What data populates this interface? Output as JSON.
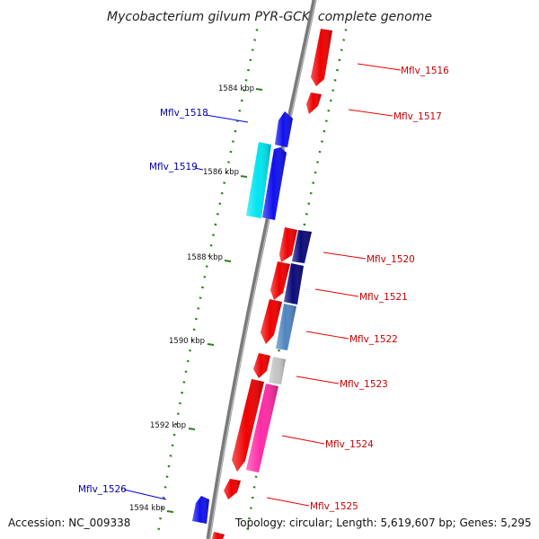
{
  "title": "Mycobacterium gilvum PYR-GCK, complete genome",
  "footer": {
    "accession": "Accession: NC_009338",
    "summary": "Topology: circular; Length: 5,619,607 bp; Genes: 5,295"
  },
  "scale_labels": [
    "1584 kbp",
    "1586 kbp",
    "1588 kbp",
    "1590 kbp",
    "1592 kbp",
    "1594 kbp"
  ],
  "gene_labels": {
    "forward": [
      "Mflv_1516",
      "Mflv_1517",
      "Mflv_1520",
      "Mflv_1521",
      "Mflv_1522",
      "Mflv_1523",
      "Mflv_1524",
      "Mflv_1525"
    ],
    "reverse": [
      "Mflv_1518",
      "Mflv_1519",
      "Mflv_1526"
    ]
  },
  "colors": {
    "label_forward": "#cc0000",
    "label_reverse": "#0000aa",
    "leader_forward": "#ee0000",
    "leader_reverse": "#0000ee",
    "tick": "#2e7d20",
    "backbone": "#7a7a7a",
    "gene_red": "#ee0000",
    "gene_blue": "#1010ee",
    "gene_cyan": "#00e5f0",
    "gene_navy": "#0a0a7a",
    "gene_steel": "#4f86c0",
    "gene_gray": "#c4c4c4",
    "gene_magenta": "#ff2aa6"
  }
}
